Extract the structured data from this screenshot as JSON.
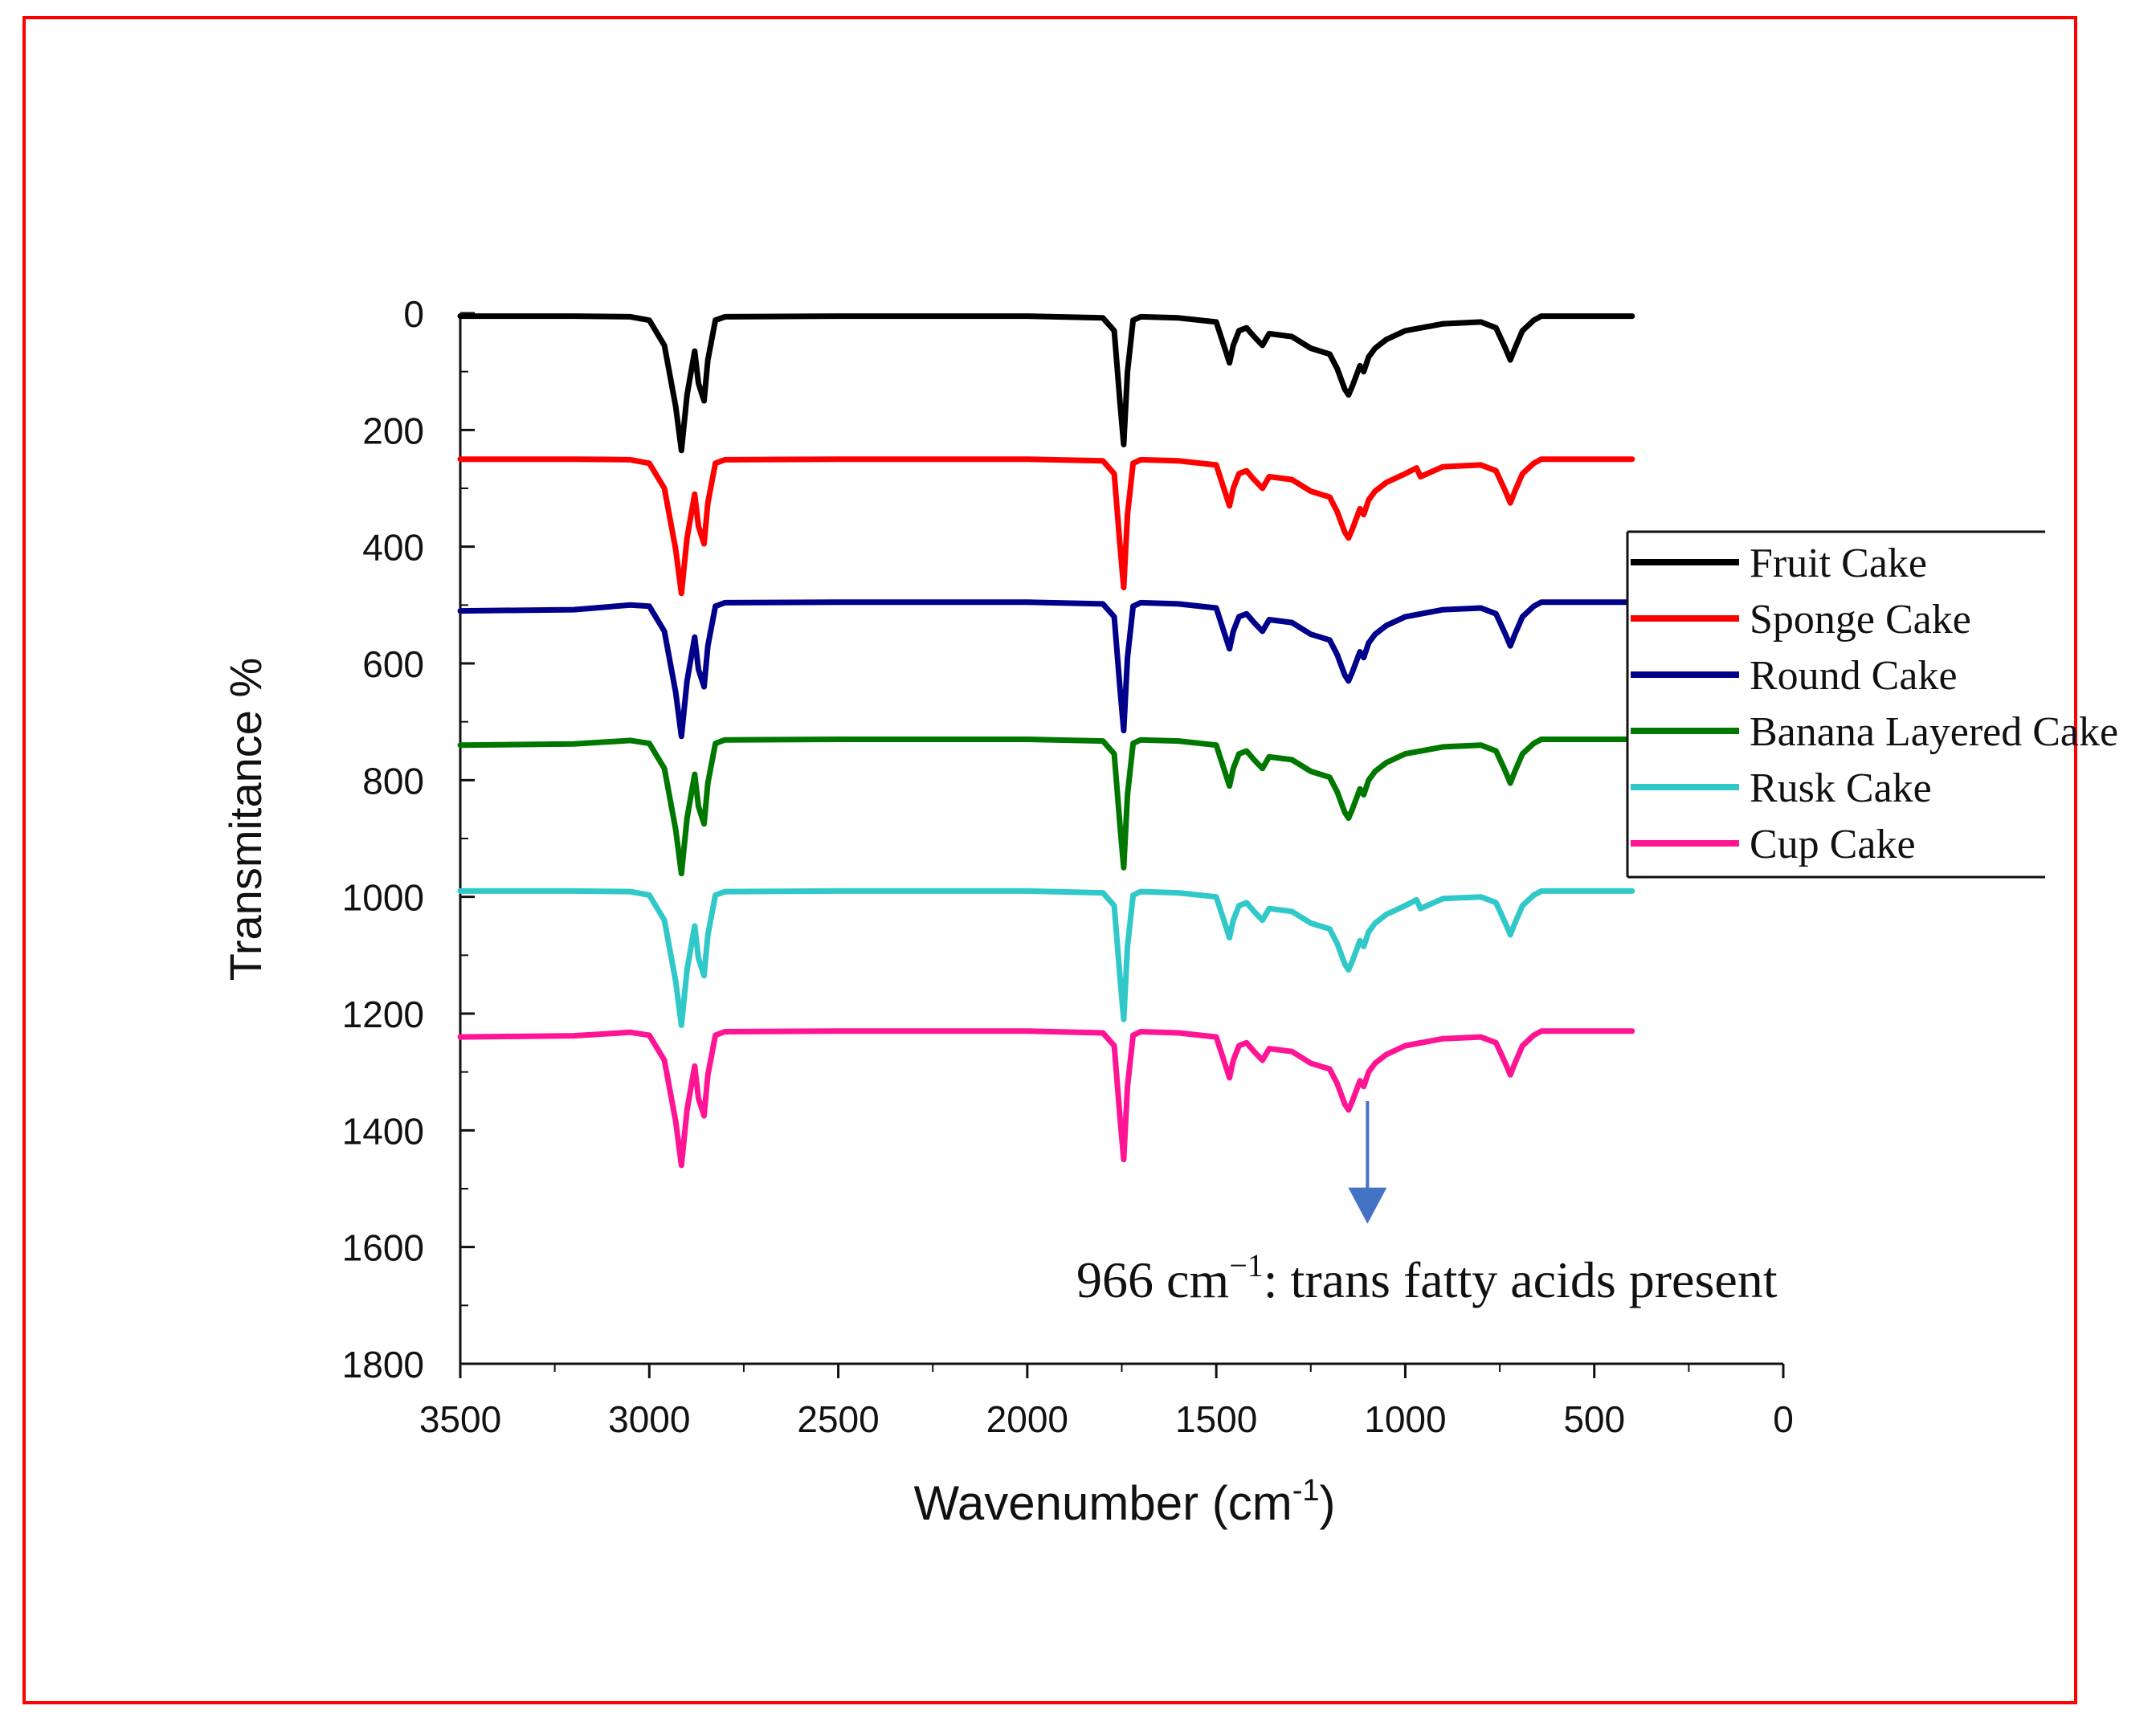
{
  "chart_data": {
    "type": "line",
    "xlabel": "Wavenumber (cm",
    "xlabel_sup": "-1",
    "xlabel_close": ")",
    "ylabel": "Transmitance %",
    "xlim": [
      3500,
      0
    ],
    "ylim": [
      0,
      1800
    ],
    "y_inverted": true,
    "x_ticks": [
      "3500",
      "3000",
      "2500",
      "2000",
      "1500",
      "1000",
      "500",
      "0"
    ],
    "y_ticks": [
      "0",
      "200",
      "400",
      "600",
      "800",
      "1000",
      "1200",
      "1400",
      "1600",
      "1800"
    ],
    "legend_position": "right",
    "annotation": {
      "text_prefix": "966 cm",
      "text_sup": "−1",
      "text_suffix": ": trans fatty acids present",
      "arrow_x": 1100,
      "arrow_from_y": 1350,
      "arrow_to_y": 1560
    },
    "series": [
      {
        "name": "Fruit Cake",
        "color": "#000000",
        "baseline": 5,
        "x": [
          3500,
          3200,
          3050,
          3000,
          2960,
          2930,
          2915,
          2900,
          2880,
          2870,
          2855,
          2845,
          2825,
          2800,
          2500,
          2000,
          1800,
          1770,
          1755,
          1745,
          1735,
          1720,
          1700,
          1600,
          1500,
          1475,
          1465,
          1455,
          1440,
          1420,
          1400,
          1378,
          1360,
          1300,
          1250,
          1200,
          1180,
          1160,
          1150,
          1140,
          1120,
          1110,
          1097,
          1080,
          1050,
          1000,
          900,
          800,
          760,
          735,
          722,
          710,
          690,
          660,
          640,
          400
        ],
        "y": [
          5,
          5,
          6,
          12,
          55,
          160,
          235,
          140,
          65,
          120,
          150,
          80,
          12,
          6,
          5,
          5,
          8,
          30,
          150,
          225,
          100,
          12,
          6,
          8,
          15,
          65,
          85,
          55,
          30,
          25,
          40,
          55,
          35,
          40,
          60,
          70,
          95,
          130,
          140,
          125,
          90,
          100,
          75,
          60,
          45,
          30,
          18,
          15,
          25,
          60,
          80,
          60,
          30,
          12,
          5,
          5
        ]
      },
      {
        "name": "Sponge Cake",
        "color": "#ff0000",
        "baseline": 250,
        "x": [
          3500,
          3200,
          3050,
          3000,
          2960,
          2930,
          2915,
          2900,
          2880,
          2870,
          2855,
          2845,
          2825,
          2800,
          2500,
          2000,
          1800,
          1770,
          1755,
          1745,
          1735,
          1720,
          1700,
          1600,
          1500,
          1475,
          1465,
          1455,
          1440,
          1420,
          1400,
          1378,
          1360,
          1300,
          1250,
          1200,
          1180,
          1160,
          1150,
          1140,
          1120,
          1110,
          1097,
          1080,
          1050,
          1000,
          970,
          960,
          900,
          800,
          760,
          735,
          722,
          710,
          690,
          660,
          640,
          400
        ],
        "y": [
          250,
          250,
          251,
          257,
          300,
          405,
          480,
          385,
          310,
          365,
          395,
          325,
          257,
          251,
          250,
          250,
          253,
          275,
          395,
          470,
          345,
          257,
          251,
          253,
          260,
          310,
          330,
          300,
          275,
          270,
          285,
          300,
          280,
          285,
          305,
          315,
          340,
          375,
          385,
          370,
          335,
          345,
          320,
          305,
          290,
          275,
          265,
          280,
          263,
          260,
          270,
          305,
          325,
          305,
          275,
          257,
          250,
          250
        ]
      },
      {
        "name": "Round Cake",
        "color": "#00008b",
        "baseline": 495,
        "x": [
          3500,
          3200,
          3050,
          3000,
          2960,
          2930,
          2915,
          2900,
          2880,
          2870,
          2855,
          2845,
          2825,
          2800,
          2500,
          2000,
          1800,
          1770,
          1755,
          1745,
          1735,
          1720,
          1700,
          1600,
          1500,
          1475,
          1465,
          1455,
          1440,
          1420,
          1400,
          1378,
          1360,
          1300,
          1250,
          1200,
          1180,
          1160,
          1150,
          1140,
          1120,
          1110,
          1097,
          1080,
          1050,
          1000,
          900,
          800,
          760,
          735,
          722,
          710,
          690,
          660,
          640,
          400
        ],
        "y": [
          510,
          508,
          500,
          502,
          545,
          650,
          725,
          630,
          555,
          610,
          640,
          570,
          502,
          496,
          495,
          495,
          498,
          520,
          640,
          715,
          590,
          502,
          496,
          498,
          505,
          555,
          575,
          545,
          520,
          515,
          530,
          545,
          525,
          530,
          550,
          560,
          585,
          620,
          630,
          615,
          580,
          590,
          565,
          550,
          535,
          520,
          508,
          505,
          515,
          550,
          570,
          550,
          520,
          502,
          495,
          495
        ]
      },
      {
        "name": "Banana Layered Cake",
        "color": "#007800",
        "baseline": 730,
        "x": [
          3500,
          3200,
          3050,
          3000,
          2960,
          2930,
          2915,
          2900,
          2880,
          2870,
          2855,
          2845,
          2825,
          2800,
          2500,
          2000,
          1800,
          1770,
          1755,
          1745,
          1735,
          1720,
          1700,
          1600,
          1500,
          1475,
          1465,
          1455,
          1440,
          1420,
          1400,
          1378,
          1360,
          1300,
          1250,
          1200,
          1180,
          1160,
          1150,
          1140,
          1120,
          1110,
          1097,
          1080,
          1050,
          1000,
          900,
          800,
          760,
          735,
          722,
          710,
          690,
          660,
          640,
          400
        ],
        "y": [
          740,
          738,
          732,
          737,
          780,
          885,
          960,
          865,
          790,
          845,
          875,
          805,
          737,
          731,
          730,
          730,
          733,
          755,
          875,
          950,
          825,
          737,
          731,
          733,
          740,
          790,
          810,
          780,
          755,
          750,
          765,
          780,
          760,
          765,
          785,
          795,
          820,
          855,
          865,
          850,
          815,
          825,
          800,
          785,
          770,
          755,
          743,
          740,
          750,
          785,
          805,
          785,
          755,
          737,
          730,
          730
        ]
      },
      {
        "name": "Rusk Cake",
        "color": "#30c8c8",
        "baseline": 990,
        "x": [
          3500,
          3200,
          3050,
          3000,
          2960,
          2930,
          2915,
          2900,
          2880,
          2870,
          2855,
          2845,
          2825,
          2800,
          2500,
          2000,
          1800,
          1770,
          1755,
          1745,
          1735,
          1720,
          1700,
          1600,
          1500,
          1475,
          1465,
          1455,
          1440,
          1420,
          1400,
          1378,
          1360,
          1300,
          1250,
          1200,
          1180,
          1160,
          1150,
          1140,
          1120,
          1110,
          1097,
          1080,
          1050,
          1000,
          970,
          960,
          900,
          800,
          760,
          735,
          722,
          710,
          690,
          660,
          640,
          400
        ],
        "y": [
          990,
          990,
          991,
          997,
          1040,
          1145,
          1220,
          1125,
          1050,
          1105,
          1135,
          1065,
          997,
          991,
          990,
          990,
          993,
          1015,
          1135,
          1210,
          1085,
          997,
          991,
          993,
          1000,
          1050,
          1070,
          1040,
          1015,
          1010,
          1025,
          1040,
          1020,
          1025,
          1045,
          1055,
          1080,
          1115,
          1125,
          1110,
          1075,
          1085,
          1060,
          1045,
          1030,
          1015,
          1005,
          1020,
          1003,
          1000,
          1010,
          1045,
          1065,
          1045,
          1015,
          997,
          990,
          990
        ]
      },
      {
        "name": "Cup Cake",
        "color": "#ff1493",
        "baseline": 1230,
        "x": [
          3500,
          3200,
          3050,
          3000,
          2960,
          2930,
          2915,
          2900,
          2880,
          2870,
          2855,
          2845,
          2825,
          2800,
          2500,
          2000,
          1800,
          1770,
          1755,
          1745,
          1735,
          1720,
          1700,
          1600,
          1500,
          1475,
          1465,
          1455,
          1440,
          1420,
          1400,
          1378,
          1360,
          1300,
          1250,
          1200,
          1180,
          1160,
          1150,
          1140,
          1120,
          1110,
          1097,
          1080,
          1050,
          1000,
          900,
          800,
          760,
          735,
          722,
          710,
          690,
          660,
          640,
          400
        ],
        "y": [
          1240,
          1238,
          1232,
          1237,
          1280,
          1385,
          1460,
          1365,
          1290,
          1345,
          1375,
          1305,
          1237,
          1231,
          1230,
          1230,
          1233,
          1255,
          1375,
          1450,
          1325,
          1237,
          1231,
          1233,
          1240,
          1290,
          1310,
          1280,
          1255,
          1250,
          1265,
          1280,
          1260,
          1265,
          1285,
          1295,
          1320,
          1355,
          1365,
          1350,
          1315,
          1325,
          1300,
          1285,
          1270,
          1255,
          1243,
          1240,
          1250,
          1285,
          1305,
          1285,
          1255,
          1237,
          1230,
          1230
        ]
      }
    ]
  }
}
